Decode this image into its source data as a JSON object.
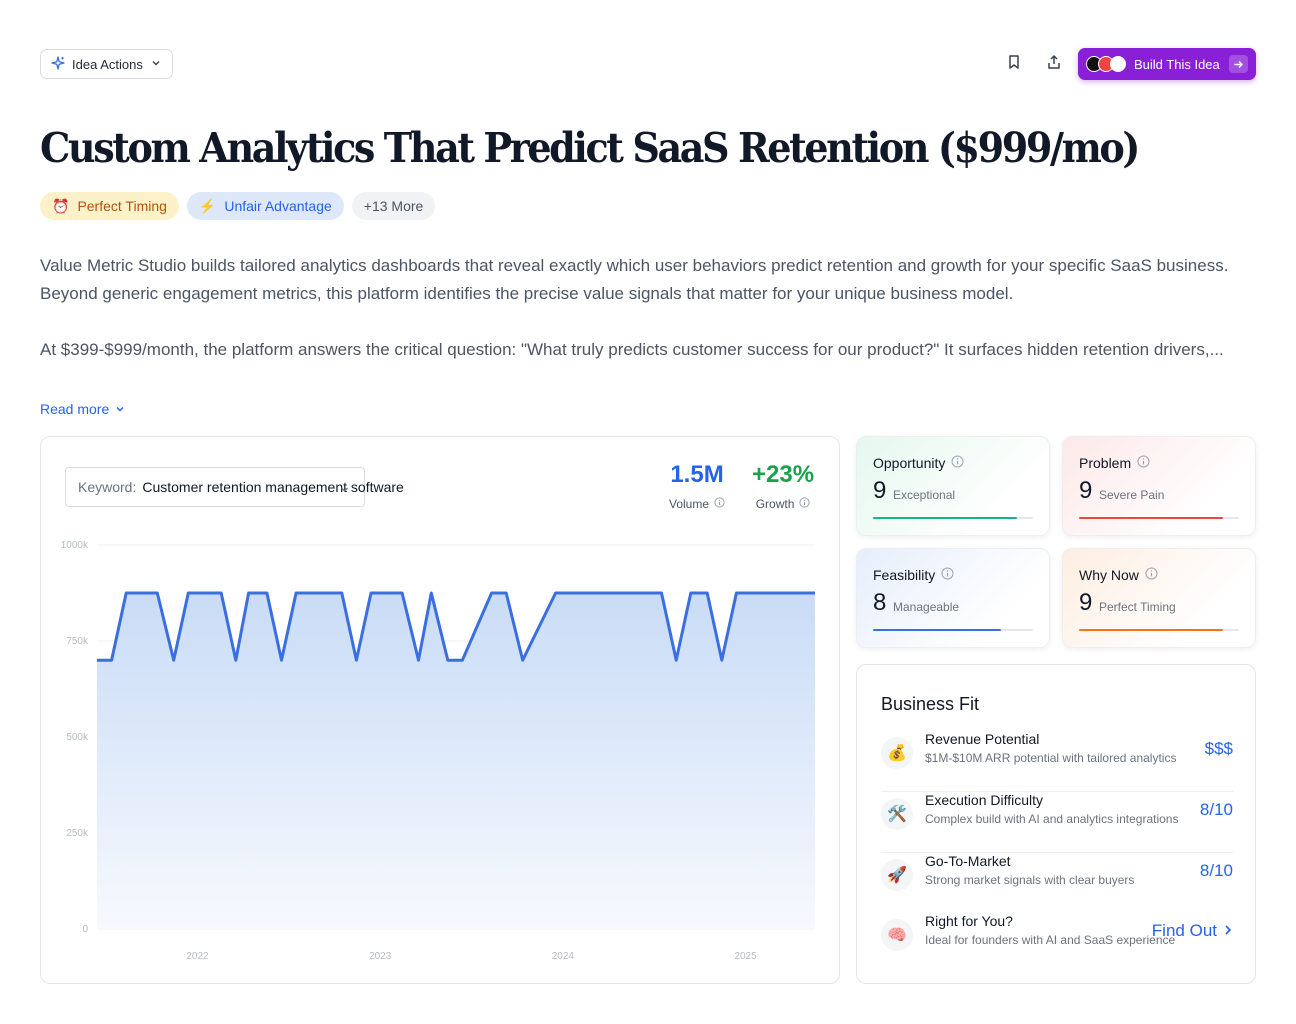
{
  "toolbar": {
    "idea_actions_label": "Idea Actions",
    "build_label": "Build This Idea",
    "build_logo_colors": [
      "#111111",
      "#ef4444",
      "#ffffff"
    ]
  },
  "idea": {
    "title": "Custom Analytics That Predict SaaS Retention ($999/mo)",
    "tags": [
      {
        "icon": "⏰",
        "label": "Perfect Timing"
      },
      {
        "icon": "⚡",
        "label": "Unfair Advantage"
      },
      {
        "label": "+13 More"
      }
    ],
    "description": [
      "Value Metric Studio builds tailored analytics dashboards that reveal exactly which user behaviors predict retention and growth for your specific SaaS business. Beyond generic engagement metrics, this platform identifies the precise value signals that matter for your unique business model.",
      "At $399-$999/month, the platform answers the critical question: \"What truly predicts customer success for our product?\" It surfaces hidden retention drivers,..."
    ],
    "read_more": "Read more"
  },
  "keyword": {
    "label": "Keyword:",
    "value": "Customer retention management software"
  },
  "stats": {
    "volume": {
      "value": "1.5M",
      "label": "Volume",
      "color": "#2563eb"
    },
    "growth": {
      "value": "+23%",
      "label": "Growth",
      "color": "#16a34a"
    }
  },
  "chart_data": {
    "type": "area",
    "ylim": [
      0,
      1000000
    ],
    "yticks": [
      {
        "value": 0,
        "label": "0"
      },
      {
        "value": 250000,
        "label": "250k"
      },
      {
        "value": 500000,
        "label": "500k"
      },
      {
        "value": 750000,
        "label": "750k"
      },
      {
        "value": 1000000,
        "label": "1000k"
      }
    ],
    "xlim": [
      2021.45,
      2025.38
    ],
    "xticks": [
      {
        "value": 2022,
        "label": "2022"
      },
      {
        "value": 2023,
        "label": "2023"
      },
      {
        "value": 2024,
        "label": "2024"
      },
      {
        "value": 2025,
        "label": "2025"
      }
    ],
    "series": [
      {
        "color": "#3b6fe0",
        "x": [
          2021.45,
          2021.53,
          2021.61,
          2021.78,
          2021.87,
          2021.95,
          2022.13,
          2022.21,
          2022.28,
          2022.38,
          2022.46,
          2022.54,
          2022.79,
          2022.87,
          2022.95,
          2023.12,
          2023.21,
          2023.28,
          2023.37,
          2023.45,
          2023.61,
          2023.69,
          2023.78,
          2023.96,
          2024.04,
          2024.12,
          2024.54,
          2024.62,
          2024.7,
          2024.79,
          2024.87,
          2024.95,
          2025.38
        ],
        "y": [
          700000,
          700000,
          875000,
          875000,
          700000,
          875000,
          875000,
          700000,
          875000,
          875000,
          700000,
          875000,
          875000,
          700000,
          875000,
          875000,
          700000,
          875000,
          700000,
          700000,
          875000,
          875000,
          700000,
          875000,
          875000,
          875000,
          875000,
          700000,
          875000,
          875000,
          700000,
          875000,
          875000
        ]
      }
    ]
  },
  "scores": [
    {
      "name": "Opportunity",
      "value": "9",
      "quality": "Exceptional",
      "level": 0.9,
      "color": "#10b981",
      "bg_from": "#e4f8ee"
    },
    {
      "name": "Problem",
      "value": "9",
      "quality": "Severe Pain",
      "level": 0.9,
      "color": "#ef4444",
      "bg_from": "#fde8e8"
    },
    {
      "name": "Feasibility",
      "value": "8",
      "quality": "Manageable",
      "level": 0.8,
      "color": "#3b6fe0",
      "bg_from": "#e6eefb"
    },
    {
      "name": "Why Now",
      "value": "9",
      "quality": "Perfect Timing",
      "level": 0.9,
      "color": "#f97316",
      "bg_from": "#fdeee0"
    }
  ],
  "business_fit": {
    "title": "Business Fit",
    "rows": [
      {
        "icon": "💰",
        "label": "Revenue Potential",
        "sub": "$1M-$10M ARR potential with tailored analytics",
        "value": "$$$"
      },
      {
        "icon": "🛠️",
        "label": "Execution Difficulty",
        "sub": "Complex build with AI and analytics integrations",
        "value": "8/10"
      },
      {
        "icon": "🚀",
        "label": "Go-To-Market",
        "sub": "Strong market signals with clear buyers",
        "value": "8/10"
      },
      {
        "icon": "🧠",
        "label": "Right for You?",
        "sub": "Ideal for founders with AI and SaaS experience",
        "value": "Find Out"
      }
    ]
  }
}
